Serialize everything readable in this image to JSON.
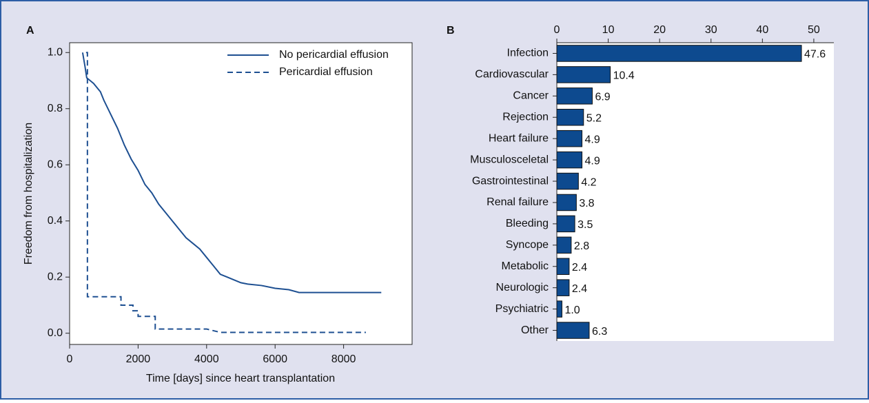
{
  "chart_data": [
    {
      "type": "line",
      "label": "A",
      "xlabel": "Time [days] since heart transplantation",
      "ylabel": "Freedom from hospitalization",
      "xlim": [
        0,
        10000
      ],
      "xticks": [
        0,
        2000,
        4000,
        6000,
        8000
      ],
      "ylim": [
        -0.04,
        1.035
      ],
      "yticks": [
        {
          "value": 0,
          "label": "0.0"
        },
        0.2,
        0.4,
        0.6,
        0.8,
        {
          "value": 1,
          "label": "1.0"
        }
      ],
      "legend": "upper right",
      "series": [
        {
          "name": "No pericardial effusion",
          "color": "#1d4f91",
          "style": "solid",
          "x": [
            380,
            450,
            500,
            700,
            900,
            1000,
            1200,
            1400,
            1600,
            1800,
            2000,
            2200,
            2400,
            2600,
            2800,
            3000,
            3200,
            3400,
            3600,
            3800,
            4000,
            4200,
            4400,
            4600,
            4800,
            5000,
            5200,
            5600,
            6000,
            6400,
            6700,
            9100
          ],
          "values": [
            1.0,
            0.95,
            0.91,
            0.89,
            0.86,
            0.83,
            0.78,
            0.73,
            0.67,
            0.62,
            0.58,
            0.53,
            0.5,
            0.46,
            0.43,
            0.4,
            0.37,
            0.34,
            0.32,
            0.3,
            0.27,
            0.24,
            0.21,
            0.2,
            0.19,
            0.18,
            0.175,
            0.17,
            0.16,
            0.155,
            0.145,
            0.145
          ]
        },
        {
          "name": "Pericardial effusion",
          "color": "#1d4f91",
          "style": "dashed",
          "x": [
            480,
            520,
            520,
            1500,
            1500,
            1850,
            1850,
            2000,
            2000,
            2500,
            2500,
            4000,
            4400,
            8650
          ],
          "values": [
            1.0,
            1.0,
            0.13,
            0.13,
            0.1,
            0.1,
            0.08,
            0.08,
            0.06,
            0.06,
            0.015,
            0.015,
            0.003,
            0.003
          ]
        }
      ]
    },
    {
      "type": "barh",
      "label": "B",
      "categories": [
        "Infection",
        "Cardiovascular",
        "Cancer",
        "Rejection",
        "Heart failure",
        "Musculosceletal",
        "Gastrointestinal",
        "Renal failure",
        "Bleeding",
        "Syncope",
        "Metabolic",
        "Neurologic",
        "Psychiatric",
        "Other"
      ],
      "values": [
        47.6,
        10.4,
        6.9,
        5.2,
        4.9,
        4.9,
        4.2,
        3.8,
        3.5,
        2.8,
        2.4,
        2.4,
        1.0,
        6.3
      ],
      "value_labels": [
        "47.6",
        "10.4",
        "6.9",
        "5.2",
        "4.9",
        "4.9",
        "4.2",
        "3.8",
        "3.5",
        "2.8",
        "2.4",
        "2.4",
        "1.0",
        "6.3"
      ],
      "color": "#0d4a8f",
      "xlim": [
        0,
        53.9
      ],
      "xticks": [
        0,
        10,
        20,
        30,
        40,
        50
      ]
    }
  ]
}
